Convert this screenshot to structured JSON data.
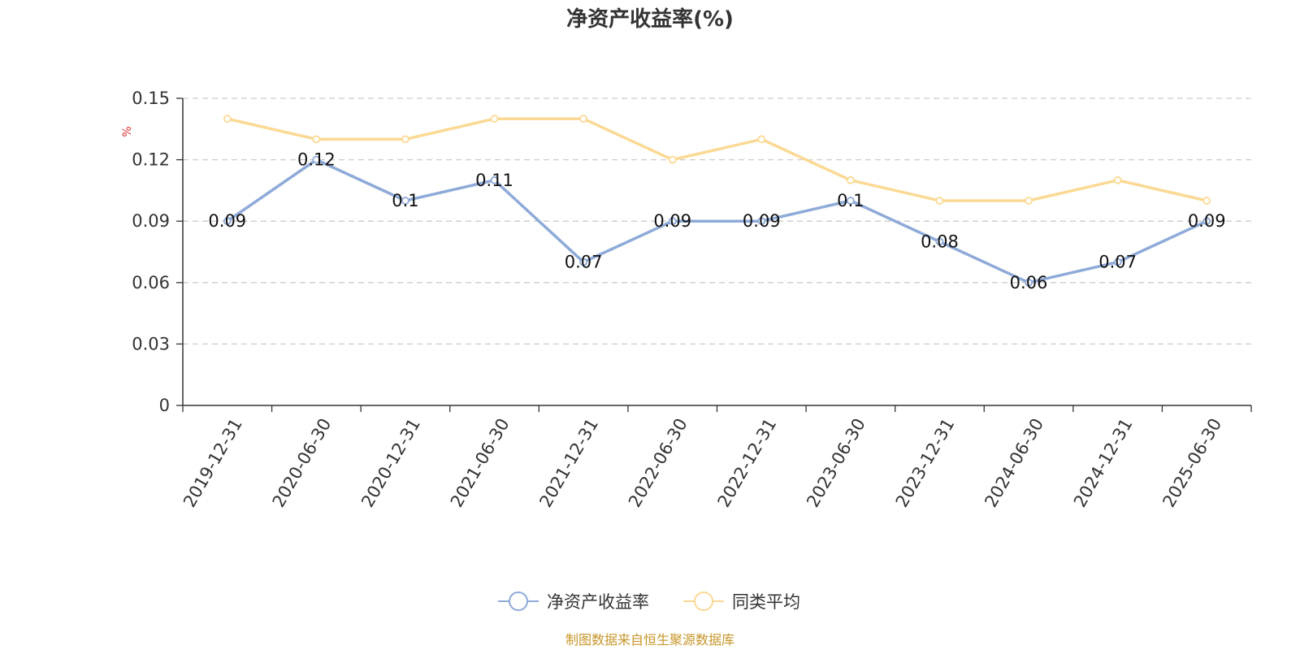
{
  "chart_data": {
    "type": "line",
    "title": "净资产收益率(%)",
    "ylabel": "%",
    "xlabel": "",
    "ylim": [
      0,
      0.15
    ],
    "yticks": [
      "0",
      "0.03",
      "0.06",
      "0.09",
      "0.12",
      "0.15"
    ],
    "grid": true,
    "legend_position": "bottom",
    "categories": [
      "2019-12-31",
      "2020-06-30",
      "2020-12-31",
      "2021-06-30",
      "2021-12-31",
      "2022-06-30",
      "2022-12-31",
      "2023-06-30",
      "2023-12-31",
      "2024-06-30",
      "2024-12-31",
      "2025-06-30"
    ],
    "series": [
      {
        "name": "净资产收益率",
        "color": "#8eaad8",
        "values": [
          0.09,
          0.12,
          0.1,
          0.11,
          0.07,
          0.09,
          0.09,
          0.1,
          0.08,
          0.06,
          0.07,
          0.09
        ],
        "labels": [
          "0.09",
          "0.12",
          "0.1",
          "0.11",
          "0.07",
          "0.09",
          "0.09",
          "0.1",
          "0.08",
          "0.06",
          "0.07",
          "0.09"
        ]
      },
      {
        "name": "同类平均",
        "color": "#fbd994",
        "values": [
          0.14,
          0.13,
          0.13,
          0.14,
          0.14,
          0.12,
          0.13,
          0.11,
          0.1,
          0.1,
          0.11,
          0.1
        ]
      }
    ]
  },
  "source_text": "制图数据来自恒生聚源数据库",
  "colors": {
    "axis": "#333333",
    "grid": "#cccccc",
    "unit_label": "#e03030",
    "source_text": "#c8962a"
  }
}
